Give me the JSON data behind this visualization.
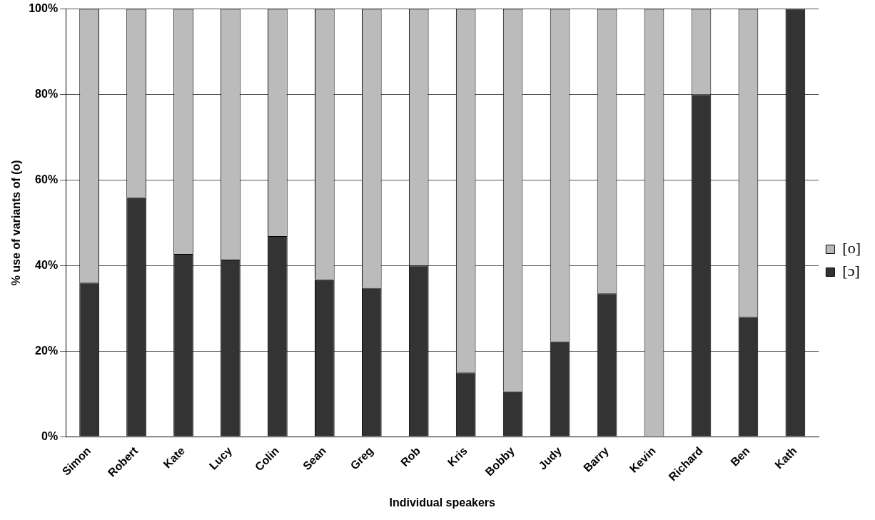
{
  "chart_data": {
    "type": "bar",
    "stacked": true,
    "xlabel": "Individual speakers",
    "ylabel": "% use of variants of (o)",
    "categories": [
      "Simon",
      "Robert",
      "Kate",
      "Lucy",
      "Colin",
      "Sean",
      "Greg",
      "Rob",
      "Kris",
      "Bobby",
      "Judy",
      "Barry",
      "Kevin",
      "Richard",
      "Ben",
      "Kath"
    ],
    "series": [
      {
        "name": "[ɔ]",
        "color": "#333333",
        "values": [
          36,
          56,
          42.7,
          41.4,
          46.9,
          36.8,
          34.8,
          40,
          15,
          10.6,
          22.3,
          33.5,
          0,
          80,
          28,
          100
        ]
      },
      {
        "name": "[o]",
        "color": "#bbbbbb",
        "values": [
          64,
          44,
          57.3,
          58.6,
          53.1,
          63.2,
          65.2,
          60,
          85,
          89.4,
          77.7,
          66.5,
          100,
          20,
          72,
          0
        ]
      }
    ],
    "ylim": [
      0,
      100
    ],
    "yticks": [
      {
        "value": 0,
        "label": "0%"
      },
      {
        "value": 20,
        "label": "20%"
      },
      {
        "value": 40,
        "label": "40%"
      },
      {
        "value": 60,
        "label": "60%"
      },
      {
        "value": 80,
        "label": "80%"
      },
      {
        "value": 100,
        "label": "100%"
      }
    ],
    "grid": "y",
    "legend": "right"
  }
}
